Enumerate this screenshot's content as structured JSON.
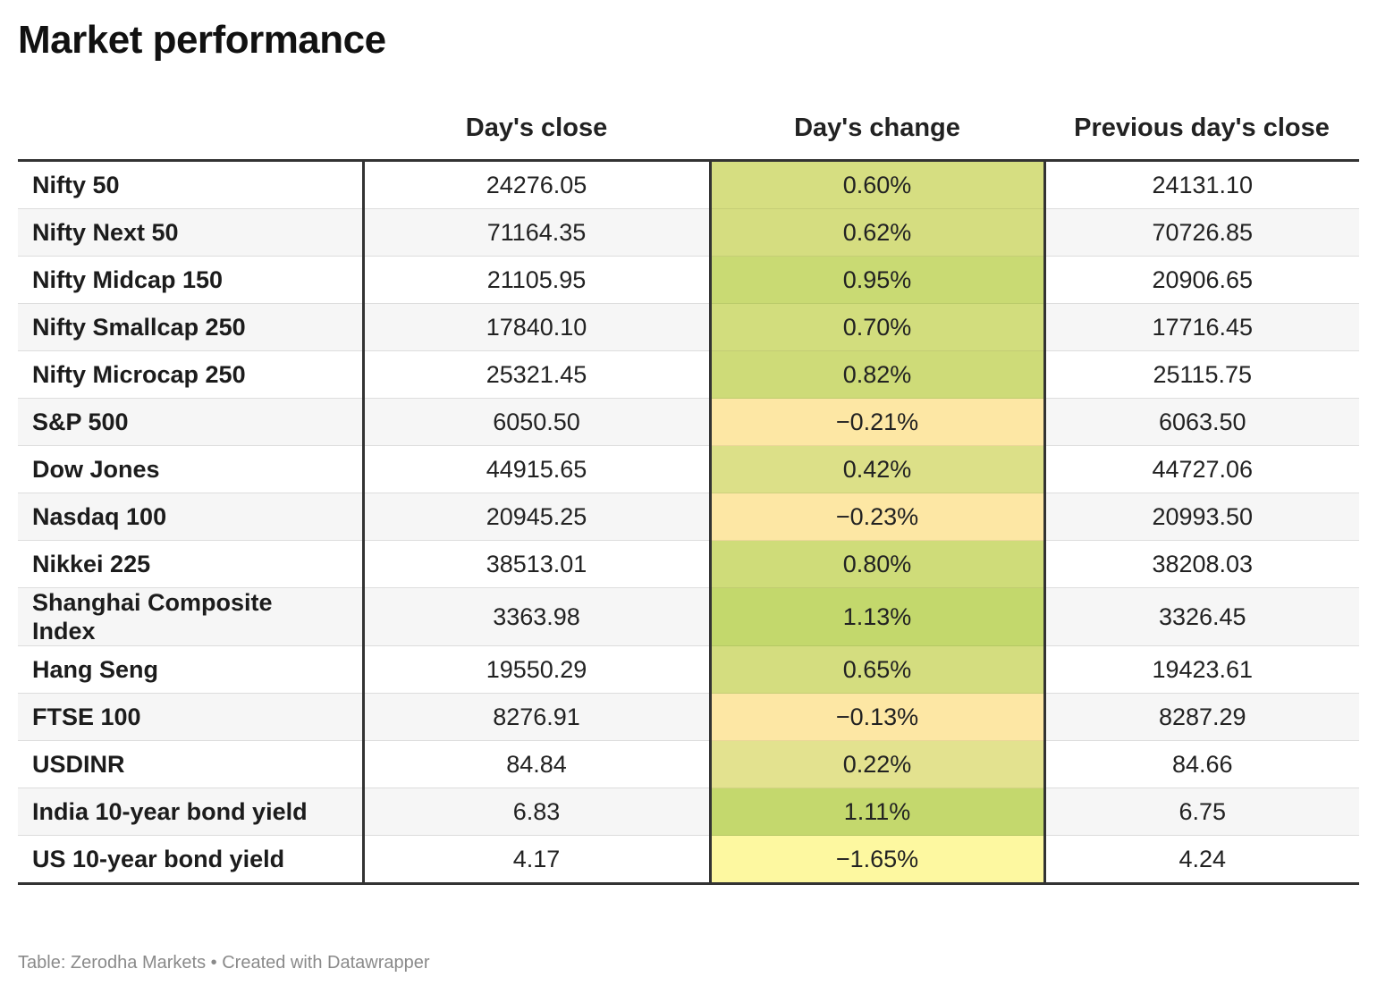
{
  "title": "Market performance",
  "footer": "Table: Zerodha Markets • Created with Datawrapper",
  "colors": {
    "header_rule": "#333333",
    "row_stripe": "#f6f6f6",
    "positive_high": "#c3d86c",
    "neutral": "#ebe498",
    "negative": "#fde7a4",
    "negative_strong": "#fdf8a0"
  },
  "chart_data": {
    "type": "table",
    "columns": [
      "",
      "Day's close",
      "Day's change",
      "Previous day's close"
    ],
    "rows": [
      {
        "name": "Nifty 50",
        "close": "24276.05",
        "change": "0.60%",
        "prev": "24131.10",
        "change_value": 0.6
      },
      {
        "name": "Nifty Next 50",
        "close": "71164.35",
        "change": "0.62%",
        "prev": "70726.85",
        "change_value": 0.62
      },
      {
        "name": "Nifty Midcap 150",
        "close": "21105.95",
        "change": "0.95%",
        "prev": "20906.65",
        "change_value": 0.95
      },
      {
        "name": "Nifty Smallcap 250",
        "close": "17840.10",
        "change": "0.70%",
        "prev": "17716.45",
        "change_value": 0.7
      },
      {
        "name": "Nifty Microcap 250",
        "close": "25321.45",
        "change": "0.82%",
        "prev": "25115.75",
        "change_value": 0.82
      },
      {
        "name": "S&P 500",
        "close": "6050.50",
        "change": "−0.21%",
        "prev": "6063.50",
        "change_value": -0.21
      },
      {
        "name": "Dow Jones",
        "close": "44915.65",
        "change": "0.42%",
        "prev": "44727.06",
        "change_value": 0.42
      },
      {
        "name": "Nasdaq 100",
        "close": "20945.25",
        "change": "−0.23%",
        "prev": "20993.50",
        "change_value": -0.23
      },
      {
        "name": "Nikkei 225",
        "close": "38513.01",
        "change": "0.80%",
        "prev": "38208.03",
        "change_value": 0.8
      },
      {
        "name": "Shanghai Composite Index",
        "close": "3363.98",
        "change": "1.13%",
        "prev": "3326.45",
        "change_value": 1.13
      },
      {
        "name": "Hang Seng",
        "close": "19550.29",
        "change": "0.65%",
        "prev": "19423.61",
        "change_value": 0.65
      },
      {
        "name": "FTSE 100",
        "close": "8276.91",
        "change": "−0.13%",
        "prev": "8287.29",
        "change_value": -0.13
      },
      {
        "name": "USDINR",
        "close": "84.84",
        "change": "0.22%",
        "prev": "84.66",
        "change_value": 0.22
      },
      {
        "name": "India 10-year bond yield",
        "close": "6.83",
        "change": "1.11%",
        "prev": "6.75",
        "change_value": 1.11
      },
      {
        "name": "US 10-year bond yield",
        "close": "4.17",
        "change": "−1.65%",
        "prev": "4.24",
        "change_value": -1.65
      }
    ]
  }
}
